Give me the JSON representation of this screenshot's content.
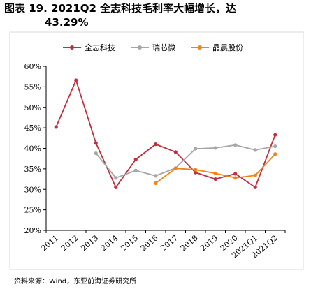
{
  "figure": {
    "title_line1": "图表 19. 2021Q2 全志科技毛利率大幅增长，达",
    "title_line2": "43.29%",
    "source": "资料来源：Wind，东亚前海证券研究所"
  },
  "chart_data": {
    "type": "line",
    "title": "图表 19. 2021Q2 全志科技毛利率大幅增长，达 43.29%",
    "categories": [
      "2011",
      "2012",
      "2013",
      "2014",
      "2015",
      "2016",
      "2017",
      "2018",
      "2019",
      "2020",
      "2021Q1",
      "2021Q2"
    ],
    "ylim": [
      20,
      60
    ],
    "yticks": [
      "20%",
      "25%",
      "30%",
      "35%",
      "40%",
      "45%",
      "50%",
      "55%",
      "60%"
    ],
    "ytick_values": [
      20,
      25,
      30,
      35,
      40,
      45,
      50,
      55,
      60
    ],
    "grid": false,
    "legend": "top-center",
    "series": [
      {
        "name": "全志科技",
        "color": "#c0303c",
        "values": [
          45.2,
          56.6,
          41.3,
          30.5,
          37.3,
          41.0,
          39.1,
          34.1,
          32.5,
          33.8,
          30.5,
          43.29
        ]
      },
      {
        "name": "瑞芯微",
        "color": "#a6a6a6",
        "values": [
          null,
          null,
          38.8,
          32.8,
          34.6,
          33.3,
          35.2,
          39.9,
          40.1,
          40.8,
          39.6,
          40.5
        ]
      },
      {
        "name": "晶晨股份",
        "color": "#f08418",
        "values": [
          null,
          null,
          null,
          null,
          null,
          31.5,
          35.1,
          34.8,
          33.9,
          32.8,
          33.4,
          38.6
        ]
      }
    ]
  }
}
